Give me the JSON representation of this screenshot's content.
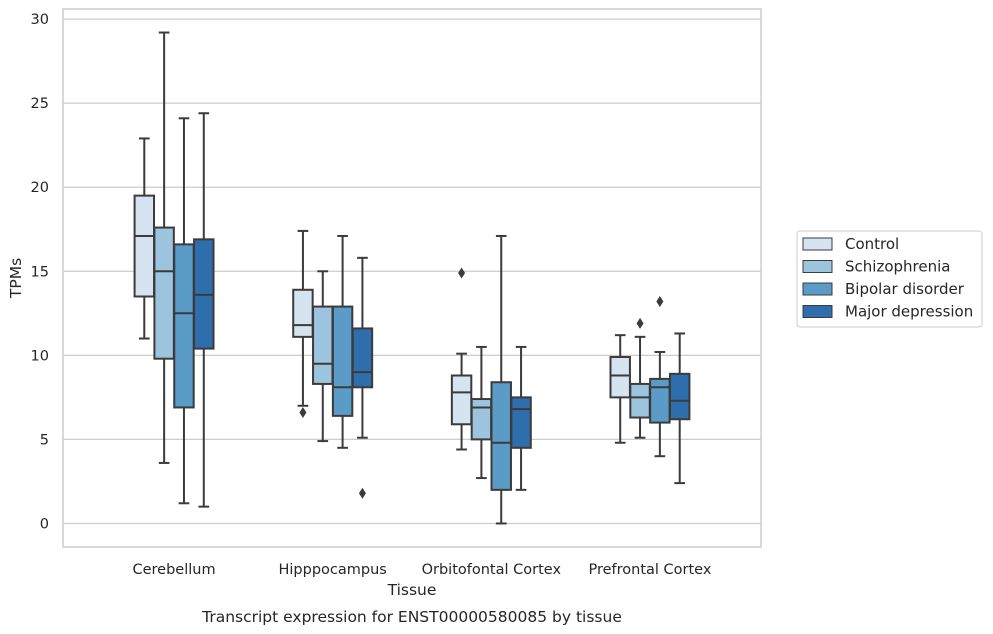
{
  "chart_data": {
    "type": "box",
    "title": "Transcript expression for ENST00000580085 by tissue",
    "xlabel": "Tissue",
    "ylabel": "TPMs",
    "ylim": [
      -1.4,
      30.6
    ],
    "yticks": [
      0,
      5,
      10,
      15,
      20,
      25,
      30
    ],
    "grid": true,
    "legend_position": "right",
    "categories": [
      "Cerebellum",
      "Hipppocampus",
      "Orbitofontal Cortex",
      "Prefrontal Cortex"
    ],
    "series": [
      {
        "name": "Control",
        "color": "#d6e4f1",
        "boxes": [
          {
            "whisker_low": 11.0,
            "q1": 13.5,
            "median": 17.1,
            "q3": 19.5,
            "whisker_high": 22.9,
            "outliers": []
          },
          {
            "whisker_low": 7.0,
            "q1": 11.1,
            "median": 11.8,
            "q3": 13.9,
            "whisker_high": 17.4,
            "outliers": [
              6.6
            ]
          },
          {
            "whisker_low": 4.4,
            "q1": 5.9,
            "median": 7.8,
            "q3": 8.8,
            "whisker_high": 10.1,
            "outliers": [
              14.9
            ]
          },
          {
            "whisker_low": 4.8,
            "q1": 7.5,
            "median": 8.8,
            "q3": 9.9,
            "whisker_high": 11.2,
            "outliers": []
          }
        ]
      },
      {
        "name": "Schizophrenia",
        "color": "#9dc4de",
        "boxes": [
          {
            "whisker_low": 3.6,
            "q1": 9.8,
            "median": 15.0,
            "q3": 17.6,
            "whisker_high": 29.2,
            "outliers": []
          },
          {
            "whisker_low": 4.9,
            "q1": 8.3,
            "median": 9.5,
            "q3": 12.9,
            "whisker_high": 15.0,
            "outliers": []
          },
          {
            "whisker_low": 2.7,
            "q1": 5.0,
            "median": 6.9,
            "q3": 7.4,
            "whisker_high": 10.5,
            "outliers": []
          },
          {
            "whisker_low": 5.1,
            "q1": 6.3,
            "median": 7.5,
            "q3": 8.3,
            "whisker_high": 11.1,
            "outliers": [
              11.9
            ]
          }
        ]
      },
      {
        "name": "Bipolar disorder",
        "color": "#5a9bc8",
        "boxes": [
          {
            "whisker_low": 1.2,
            "q1": 6.9,
            "median": 12.5,
            "q3": 16.6,
            "whisker_high": 24.1,
            "outliers": []
          },
          {
            "whisker_low": 4.5,
            "q1": 6.4,
            "median": 8.1,
            "q3": 12.9,
            "whisker_high": 17.1,
            "outliers": []
          },
          {
            "whisker_low": 0.0,
            "q1": 2.0,
            "median": 4.8,
            "q3": 8.4,
            "whisker_high": 17.1,
            "outliers": []
          },
          {
            "whisker_low": 4.0,
            "q1": 6.0,
            "median": 8.1,
            "q3": 8.6,
            "whisker_high": 10.2,
            "outliers": [
              13.2
            ]
          }
        ]
      },
      {
        "name": "Major depression",
        "color": "#2f6eac",
        "boxes": [
          {
            "whisker_low": 1.0,
            "q1": 10.4,
            "median": 13.6,
            "q3": 16.9,
            "whisker_high": 24.4,
            "outliers": []
          },
          {
            "whisker_low": 5.1,
            "q1": 8.1,
            "median": 9.0,
            "q3": 11.6,
            "whisker_high": 15.8,
            "outliers": [
              1.8
            ]
          },
          {
            "whisker_low": 2.0,
            "q1": 4.5,
            "median": 6.8,
            "q3": 7.5,
            "whisker_high": 10.5,
            "outliers": []
          },
          {
            "whisker_low": 2.4,
            "q1": 6.2,
            "median": 7.3,
            "q3": 8.9,
            "whisker_high": 11.3,
            "outliers": []
          }
        ]
      }
    ]
  }
}
